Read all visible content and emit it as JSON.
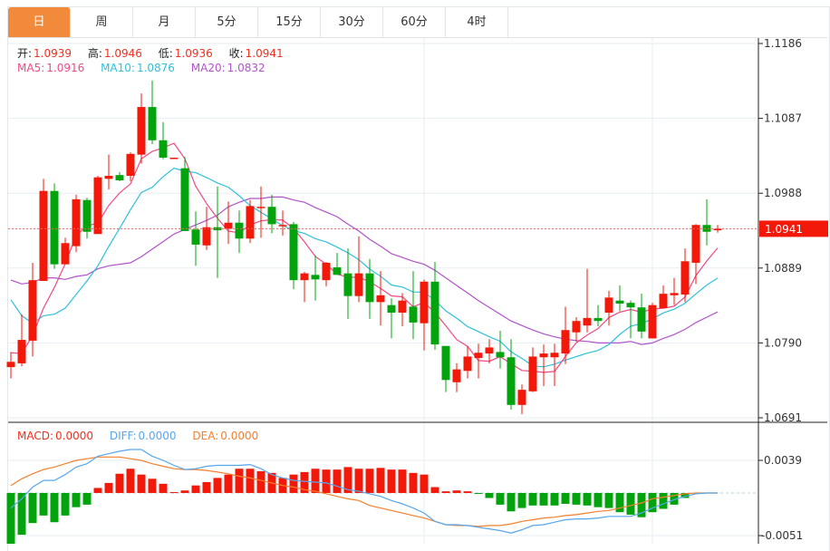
{
  "tabs": [
    "日",
    "周",
    "月",
    "5分",
    "15分",
    "30分",
    "60分",
    "4时"
  ],
  "active_tab": 0,
  "ohlc_legend": {
    "open_label": "开:",
    "open": "1.0939",
    "high_label": "高:",
    "high": "1.0946",
    "low_label": "低:",
    "low": "1.0936",
    "close_label": "收:",
    "close": "1.0941"
  },
  "ma_legend": {
    "ma5_label": "MA5:",
    "ma5": "1.0916",
    "ma10_label": "MA10:",
    "ma10": "1.0876",
    "ma20_label": "MA20:",
    "ma20": "1.0832"
  },
  "macd_legend": {
    "macd_label": "MACD:",
    "macd": "0.0000",
    "diff_label": "DIFF:",
    "diff": "0.0000",
    "dea_label": "DEA:",
    "dea": "0.0000"
  },
  "colors": {
    "up": "#f2190a",
    "down": "#03a30e",
    "ma5": "#ef4a86",
    "ma10": "#2fc0dc",
    "ma20": "#b252cc",
    "diff": "#56a6ef",
    "dea": "#f4802e",
    "accent": "#f28a3c"
  },
  "chart_data": [
    {
      "type": "candlestick",
      "title": "",
      "price_axis_ticks": [
        "1.1186",
        "1.1087",
        "1.0988",
        "1.0889",
        "1.0790",
        "1.0691"
      ],
      "ylim": [
        1.0691,
        1.1186
      ],
      "last_price_label": "1.0941",
      "last_price": 1.0941,
      "ohlc": [
        [
          1.0758,
          1.0778,
          1.0743,
          1.0765
        ],
        [
          1.0763,
          1.0828,
          1.0759,
          1.0794
        ],
        [
          1.0793,
          1.0896,
          1.0772,
          1.0873
        ],
        [
          1.0872,
          1.1007,
          1.0872,
          1.0991
        ],
        [
          1.0991,
          1.1001,
          1.0888,
          1.0894
        ],
        [
          1.0894,
          1.0929,
          1.0894,
          1.0922
        ],
        [
          1.0918,
          1.0986,
          1.091,
          1.098
        ],
        [
          1.0979,
          1.0982,
          1.0928,
          1.0937
        ],
        [
          1.0934,
          1.1011,
          1.0934,
          1.1009
        ],
        [
          1.1007,
          1.1039,
          1.0993,
          1.1011
        ],
        [
          1.1012,
          1.1016,
          1.1004,
          1.1005
        ],
        [
          1.1011,
          1.1042,
          1.1004,
          1.104
        ],
        [
          1.1039,
          1.112,
          1.1027,
          1.1102
        ],
        [
          1.1102,
          1.1137,
          1.1053,
          1.1058
        ],
        [
          1.1058,
          1.1082,
          1.1033,
          1.1035
        ],
        [
          1.1034,
          1.1035,
          1.1034,
          1.1035
        ],
        [
          1.1021,
          1.1036,
          1.0938,
          1.0938
        ],
        [
          1.094,
          1.0964,
          1.0892,
          1.092
        ],
        [
          1.0919,
          1.097,
          1.0913,
          1.0943
        ],
        [
          1.0943,
          1.0997,
          1.0876,
          1.0939
        ],
        [
          1.0941,
          1.0977,
          1.0921,
          1.0949
        ],
        [
          1.0949,
          1.0965,
          1.0909,
          1.0928
        ],
        [
          1.0928,
          1.0979,
          1.0922,
          1.0971
        ],
        [
          1.0969,
          1.0997,
          1.0929,
          1.097
        ],
        [
          1.097,
          1.0986,
          1.0935,
          1.0947
        ],
        [
          1.0945,
          1.0965,
          1.0932,
          1.0946
        ],
        [
          1.0947,
          1.095,
          1.0861,
          1.0873
        ],
        [
          1.0873,
          1.0884,
          1.0844,
          1.0882
        ],
        [
          1.088,
          1.0906,
          1.0846,
          1.0874
        ],
        [
          1.0873,
          1.0897,
          1.0865,
          1.0896
        ],
        [
          1.089,
          1.0909,
          1.088,
          1.088
        ],
        [
          1.0882,
          1.0915,
          1.0822,
          1.0852
        ],
        [
          1.0852,
          1.0931,
          1.0844,
          1.0882
        ],
        [
          1.0882,
          1.0901,
          1.0822,
          1.0844
        ],
        [
          1.0844,
          1.0885,
          1.0813,
          1.0853
        ],
        [
          1.084,
          1.0849,
          1.0796,
          1.083
        ],
        [
          1.083,
          1.0856,
          1.0812,
          1.0846
        ],
        [
          1.0838,
          1.0885,
          1.0795,
          1.0817
        ],
        [
          1.0816,
          1.0874,
          1.078,
          1.0871
        ],
        [
          1.0871,
          1.0897,
          1.0781,
          1.0788
        ],
        [
          1.0786,
          1.0786,
          1.0725,
          1.0741
        ],
        [
          1.0738,
          1.0763,
          1.0725,
          1.0755
        ],
        [
          1.0753,
          1.0786,
          1.0743,
          1.0772
        ],
        [
          1.077,
          1.0789,
          1.0743,
          1.0777
        ],
        [
          1.0776,
          1.0795,
          1.0763,
          1.0784
        ],
        [
          1.0778,
          1.0806,
          1.0756,
          1.0771
        ],
        [
          1.0771,
          1.0795,
          1.0702,
          1.0708
        ],
        [
          1.0708,
          1.0735,
          1.0696,
          1.0728
        ],
        [
          1.0726,
          1.0784,
          1.0725,
          1.0772
        ],
        [
          1.0771,
          1.0788,
          1.0733,
          1.0776
        ],
        [
          1.0771,
          1.0789,
          1.0733,
          1.0777
        ],
        [
          1.0776,
          1.0838,
          1.0762,
          1.0807
        ],
        [
          1.0804,
          1.0824,
          1.0792,
          1.0819
        ],
        [
          1.0813,
          1.0888,
          1.0804,
          1.0823
        ],
        [
          1.0823,
          1.084,
          1.0812,
          1.0819
        ],
        [
          1.083,
          1.0859,
          1.0813,
          1.085
        ],
        [
          1.0846,
          1.0866,
          1.0832,
          1.0842
        ],
        [
          1.0843,
          1.0846,
          1.0796,
          1.0837
        ],
        [
          1.0837,
          1.0855,
          1.0796,
          1.0805
        ],
        [
          1.0796,
          1.0843,
          1.0796,
          1.084
        ],
        [
          1.0836,
          1.0866,
          1.0836,
          1.0855
        ],
        [
          1.0853,
          1.0876,
          1.084,
          1.0856
        ],
        [
          1.0854,
          1.0915,
          1.0844,
          1.0898
        ],
        [
          1.0896,
          1.0947,
          1.0868,
          1.0946
        ],
        [
          1.0946,
          1.098,
          1.0919,
          1.0937
        ],
        [
          1.0939,
          1.0946,
          1.0936,
          1.0941
        ]
      ],
      "ma5_head": [
        1.0777,
        1.0776,
        1.08,
        1.0836
      ],
      "ma10_head": [
        1.0847,
        1.0826,
        1.0816,
        1.0826,
        1.0828,
        1.0836,
        1.0854,
        1.0872,
        1.0892
      ],
      "ma20": [
        1.0873,
        1.0868,
        1.087,
        1.0876,
        1.0876,
        1.0874,
        1.0878,
        1.088,
        1.0888,
        1.0892,
        1.0894,
        1.0896,
        1.0904,
        1.0914,
        1.0924,
        1.0934,
        1.094,
        1.0946,
        1.0952,
        1.0959,
        1.097,
        1.0976,
        1.0981,
        1.0981,
        1.0983,
        1.0983,
        1.0979,
        1.0976,
        1.0969,
        1.0963,
        1.0957,
        1.0947,
        1.0938,
        1.0927,
        1.0918,
        1.0908,
        1.0903,
        1.0898,
        1.0894,
        1.0886,
        1.0876,
        1.0866,
        1.0856,
        1.0846,
        1.0837,
        1.0828,
        1.0819,
        1.0813,
        1.0807,
        1.0802,
        1.0798,
        1.0795,
        1.0793,
        1.0792,
        1.079,
        1.079,
        1.079,
        1.0792,
        1.0788,
        1.079,
        1.0796,
        1.0801,
        1.0808,
        1.0817,
        1.0824,
        1.0831
      ]
    },
    {
      "type": "macd",
      "axis_ticks": [
        "0.0039",
        "-0.0051"
      ],
      "ylim": [
        -0.0051,
        0.0039
      ],
      "macd": [
        -0.0061,
        -0.005,
        -0.0036,
        -0.0027,
        -0.0035,
        -0.0027,
        -0.0017,
        -0.0014,
        0.0006,
        0.0012,
        0.0023,
        0.0029,
        0.0022,
        0.0017,
        0.0011,
        0.0001,
        0.0003,
        0.0009,
        0.0013,
        0.0018,
        0.0022,
        0.0029,
        0.0029,
        0.0026,
        0.0024,
        0.0018,
        0.0022,
        0.0025,
        0.0029,
        0.0028,
        0.0028,
        0.0031,
        0.0029,
        0.0029,
        0.003,
        0.0028,
        0.0028,
        0.0024,
        0.0022,
        0.0007,
        0.0002,
        0.0003,
        0.0002,
        -0.0001,
        -0.0006,
        -0.0014,
        -0.0022,
        -0.0018,
        -0.0015,
        -0.0015,
        -0.0015,
        -0.0013,
        -0.0014,
        -0.0015,
        -0.0017,
        -0.0018,
        -0.0023,
        -0.0026,
        -0.0029,
        -0.0023,
        -0.0019,
        -0.0014,
        -0.0006,
        0,
        0,
        0
      ],
      "diff": [
        -0.0018,
        -0.0007,
        0.0007,
        0.0015,
        0.0015,
        0.0022,
        0.0031,
        0.0035,
        0.0044,
        0.0047,
        0.005,
        0.0052,
        0.0052,
        0.0044,
        0.0039,
        0.0033,
        0.0028,
        0.0029,
        0.0032,
        0.0033,
        0.0033,
        0.0033,
        0.0034,
        0.0029,
        0.0022,
        0.0018,
        0.0015,
        0.0014,
        0.0013,
        0.0012,
        0.0008,
        0.0004,
        0.0002,
        -0.0001,
        -0.0004,
        -0.0009,
        -0.0013,
        -0.0018,
        -0.0024,
        -0.0034,
        -0.0038,
        -0.0038,
        -0.0039,
        -0.0041,
        -0.0043,
        -0.0045,
        -0.0048,
        -0.0044,
        -0.0039,
        -0.0038,
        -0.0035,
        -0.0032,
        -0.0031,
        -0.0031,
        -0.003,
        -0.0028,
        -0.0028,
        -0.0028,
        -0.0024,
        -0.0018,
        -0.0013,
        -0.0008,
        -0.0004,
        -0.0001,
        0,
        0
      ],
      "dea": [
        0.0009,
        0.0017,
        0.0023,
        0.0028,
        0.0031,
        0.0035,
        0.0039,
        0.0041,
        0.0043,
        0.0043,
        0.0043,
        0.0041,
        0.0039,
        0.0035,
        0.0032,
        0.0029,
        0.0028,
        0.0028,
        0.0027,
        0.0025,
        0.0023,
        0.002,
        0.0018,
        0.0015,
        0.0012,
        0.0009,
        0.0007,
        0.0004,
        0.0002,
        -0.0001,
        -0.0004,
        -0.0007,
        -0.0009,
        -0.0015,
        -0.0018,
        -0.0021,
        -0.0024,
        -0.0027,
        -0.003,
        -0.0034,
        -0.0038,
        -0.0039,
        -0.0039,
        -0.004,
        -0.0039,
        -0.0039,
        -0.0037,
        -0.0034,
        -0.0032,
        -0.003,
        -0.0029,
        -0.0027,
        -0.0026,
        -0.0024,
        -0.0022,
        -0.0021,
        -0.0018,
        -0.0015,
        -0.0012,
        -0.0007,
        -0.0005,
        -0.0003,
        -0.0001,
        0,
        0,
        0
      ]
    }
  ]
}
